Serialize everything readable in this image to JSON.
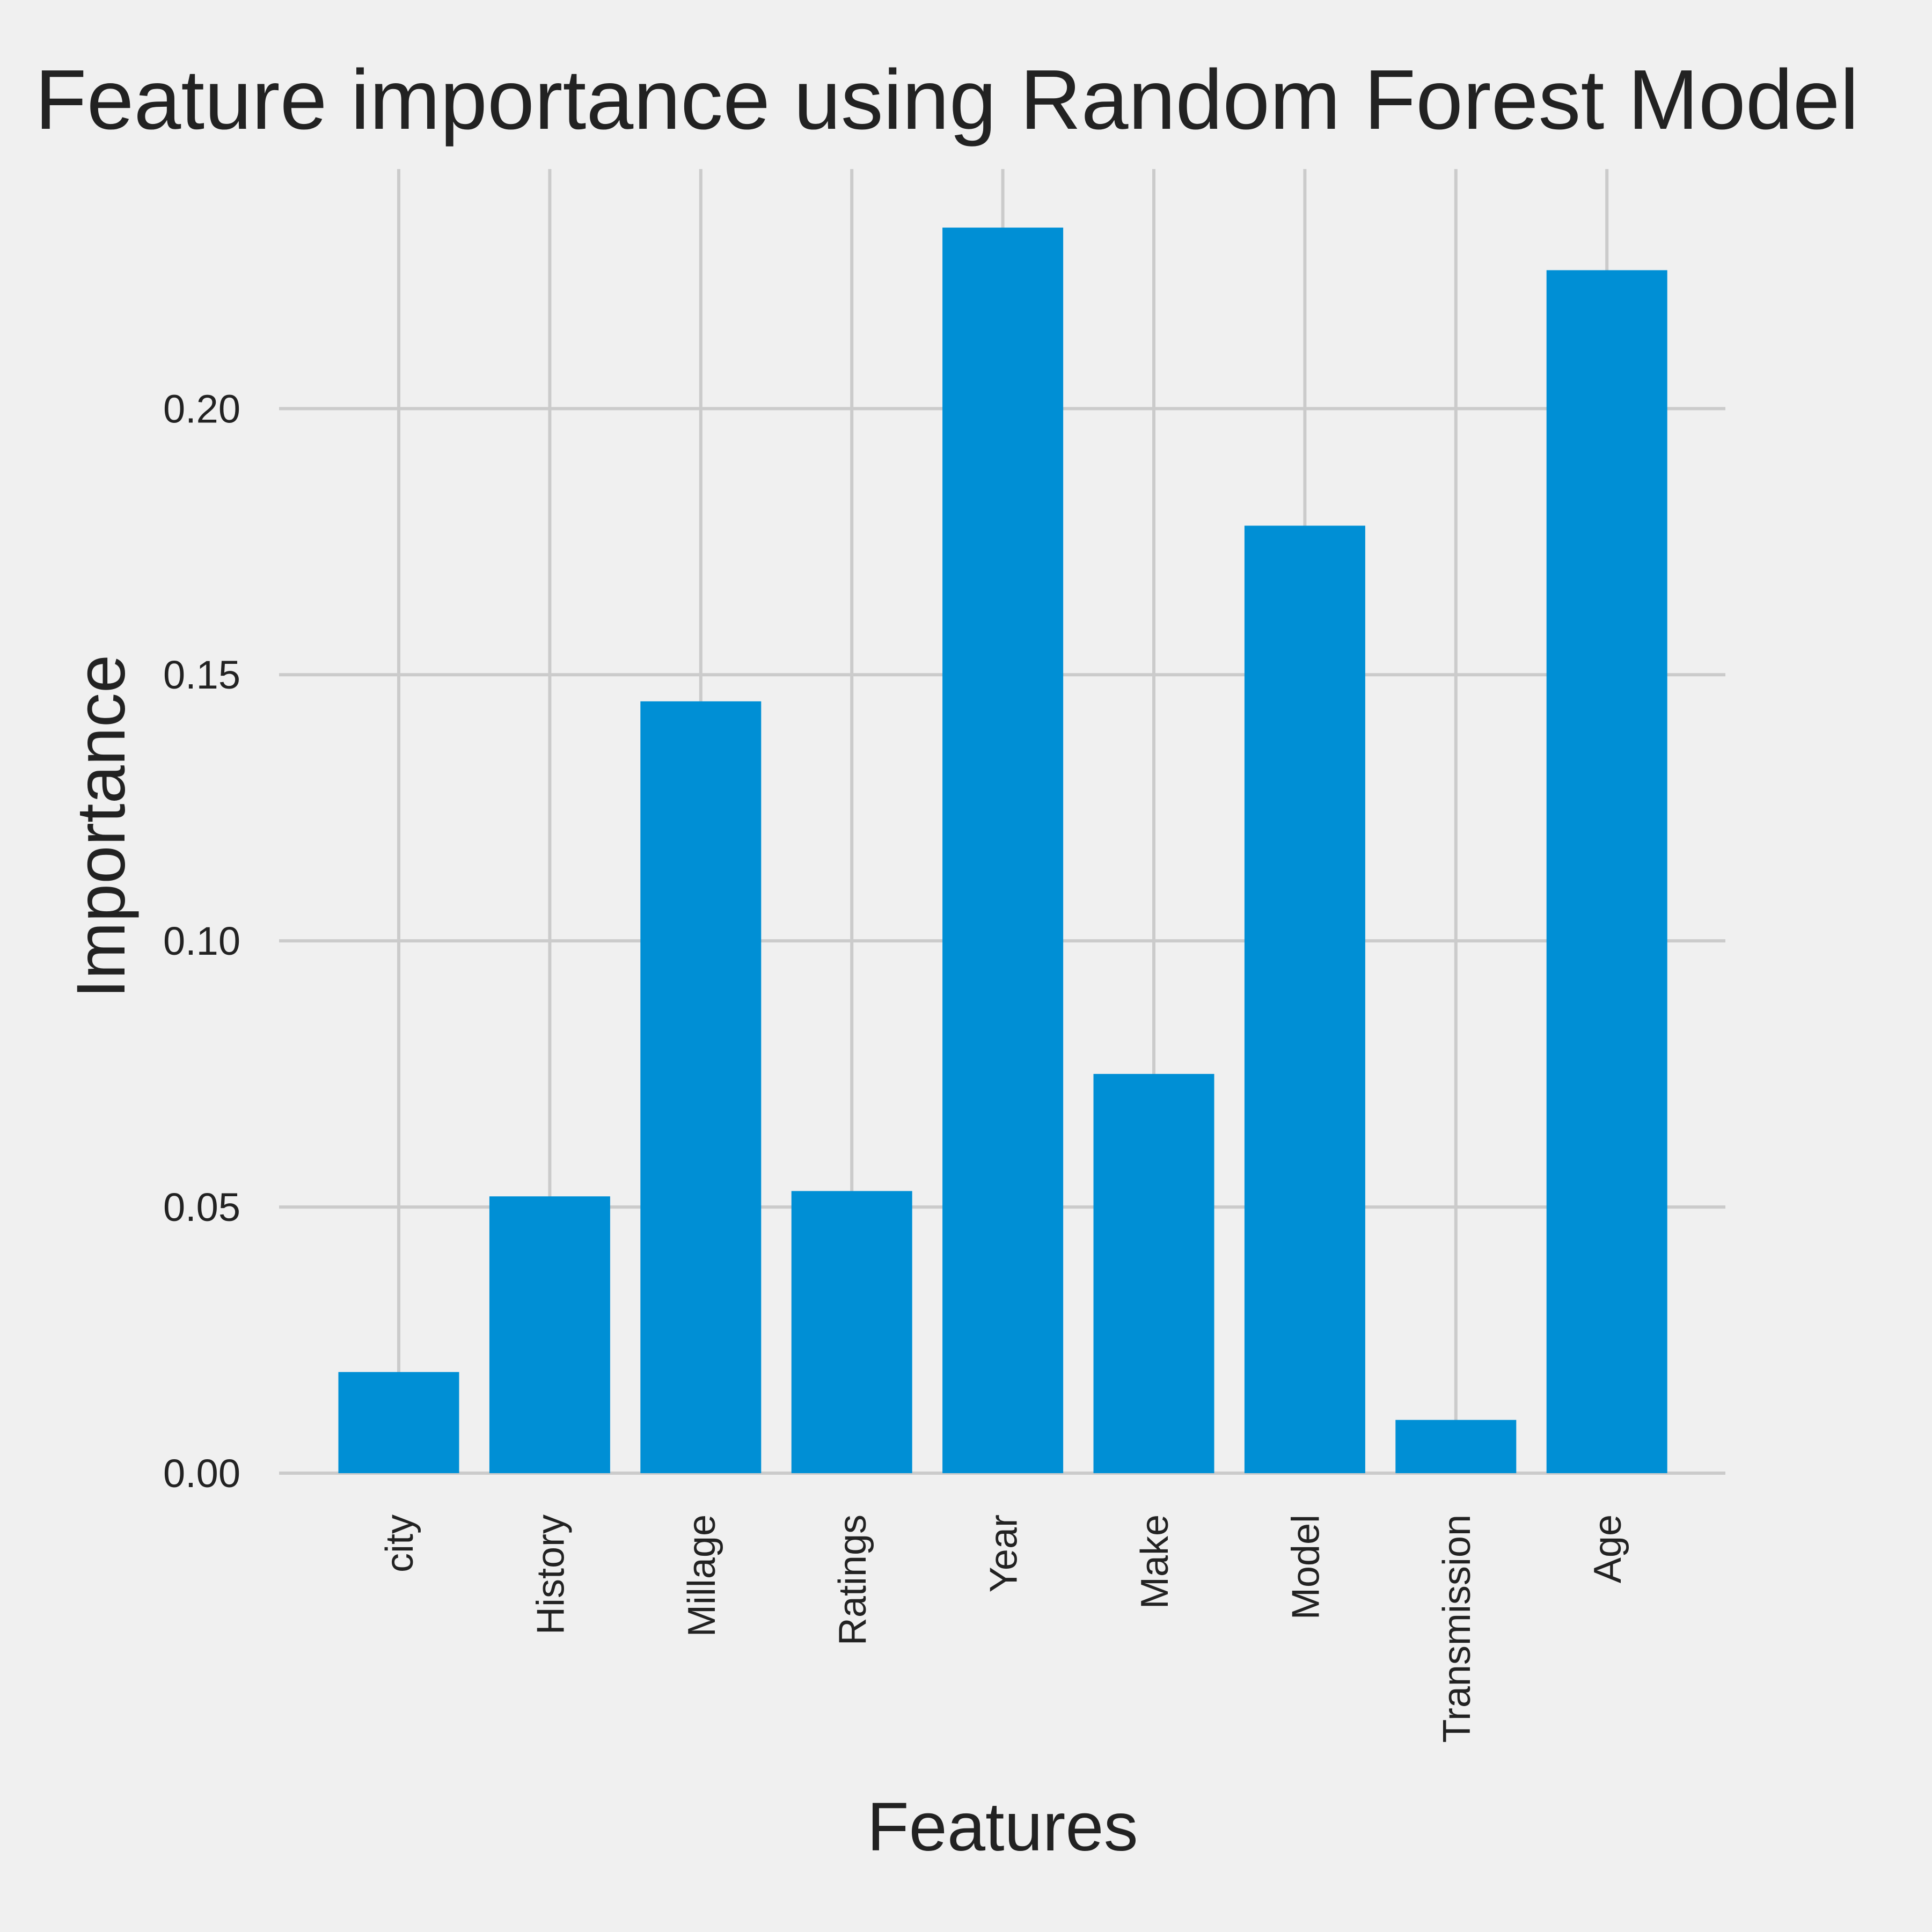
{
  "colors": {
    "background": "#f0f0f0",
    "bar": "#008fd5",
    "grid": "#cbcbcb",
    "text": "#222222"
  },
  "chart_data": {
    "type": "bar",
    "title": "Feature importance using Random Forest Model",
    "xlabel": "Features",
    "ylabel": "Importance",
    "categories": [
      "city",
      "History",
      "Millage",
      "Ratings",
      "Year",
      "Make",
      "Model",
      "Transmission",
      "Age"
    ],
    "values": [
      0.019,
      0.052,
      0.145,
      0.053,
      0.234,
      0.075,
      0.178,
      0.01,
      0.226
    ],
    "ylim": [
      0,
      0.245
    ],
    "yticks": [
      0.0,
      0.05,
      0.1,
      0.15,
      0.2
    ],
    "ytick_labels": [
      "0.00",
      "0.05",
      "0.10",
      "0.15",
      "0.20"
    ],
    "grid": true,
    "legend": "none"
  }
}
